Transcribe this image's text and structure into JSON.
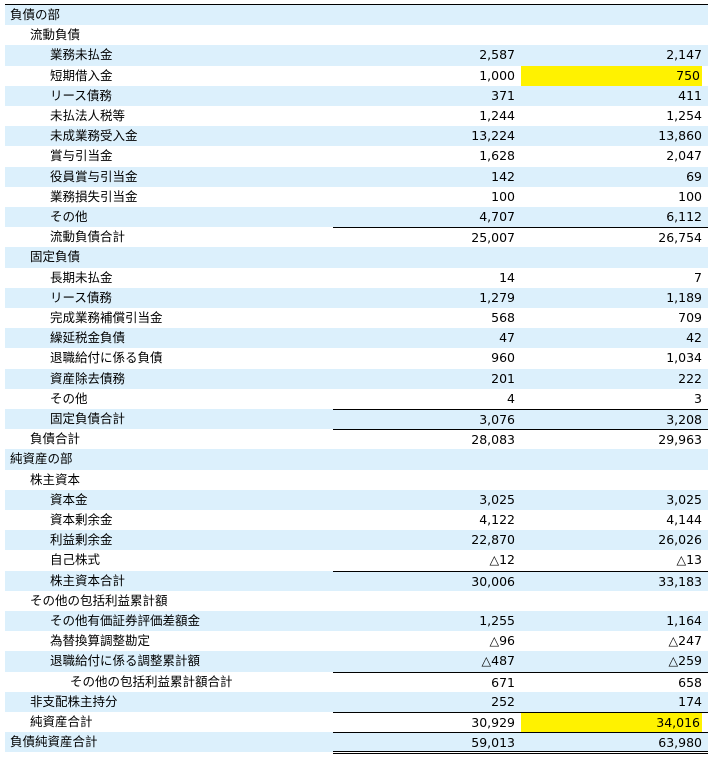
{
  "table": {
    "rows": [
      {
        "label": "負債の部"
      },
      {
        "label": "流動負債"
      },
      {
        "label": "業務未払金",
        "values": [
          "2,587",
          "2,147"
        ]
      },
      {
        "label": "短期借入金",
        "values": [
          "1,000",
          "750"
        ]
      },
      {
        "label": "リース債務",
        "values": [
          "371",
          "411"
        ]
      },
      {
        "label": "未払法人税等",
        "values": [
          "1,244",
          "1,254"
        ]
      },
      {
        "label": "未成業務受入金",
        "values": [
          "13,224",
          "13,860"
        ]
      },
      {
        "label": "賞与引当金",
        "values": [
          "1,628",
          "2,047"
        ]
      },
      {
        "label": "役員賞与引当金",
        "values": [
          "142",
          "69"
        ]
      },
      {
        "label": "業務損失引当金",
        "values": [
          "100",
          "100"
        ]
      },
      {
        "label": "その他",
        "values": [
          "4,707",
          "6,112"
        ]
      },
      {
        "label": "流動負債合計",
        "values": [
          "25,007",
          "26,754"
        ]
      },
      {
        "label": "固定負債"
      },
      {
        "label": "長期未払金",
        "values": [
          "14",
          "7"
        ]
      },
      {
        "label": "リース債務",
        "values": [
          "1,279",
          "1,189"
        ]
      },
      {
        "label": "完成業務補償引当金",
        "values": [
          "568",
          "709"
        ]
      },
      {
        "label": "繰延税金負債",
        "values": [
          "47",
          "42"
        ]
      },
      {
        "label": "退職給付に係る負債",
        "values": [
          "960",
          "1,034"
        ]
      },
      {
        "label": "資産除去債務",
        "values": [
          "201",
          "222"
        ]
      },
      {
        "label": "その他",
        "values": [
          "4",
          "3"
        ]
      },
      {
        "label": "固定負債合計",
        "values": [
          "3,076",
          "3,208"
        ]
      },
      {
        "label": "負債合計",
        "values": [
          "28,083",
          "29,963"
        ]
      },
      {
        "label": "純資産の部"
      },
      {
        "label": "株主資本"
      },
      {
        "label": "資本金",
        "values": [
          "3,025",
          "3,025"
        ]
      },
      {
        "label": "資本剰余金",
        "values": [
          "4,122",
          "4,144"
        ]
      },
      {
        "label": "利益剰余金",
        "values": [
          "22,870",
          "26,026"
        ]
      },
      {
        "label": "自己株式",
        "values": [
          "△12",
          "△13"
        ]
      },
      {
        "label": "株主資本合計",
        "values": [
          "30,006",
          "33,183"
        ]
      },
      {
        "label": "その他の包括利益累計額"
      },
      {
        "label": "その他有価証券評価差額金",
        "values": [
          "1,255",
          "1,164"
        ]
      },
      {
        "label": "為替換算調整勘定",
        "values": [
          "△96",
          "△247"
        ]
      },
      {
        "label": "退職給付に係る調整累計額",
        "values": [
          "△487",
          "△259"
        ]
      },
      {
        "label": "その他の包括利益累計額合計",
        "values": [
          "671",
          "658"
        ]
      },
      {
        "label": "非支配株主持分",
        "values": [
          "252",
          "174"
        ]
      },
      {
        "label": "純資産合計",
        "values": [
          "30,929",
          "34,016"
        ]
      },
      {
        "label": "負債純資産合計",
        "values": [
          "59,013",
          "63,980"
        ]
      }
    ]
  }
}
